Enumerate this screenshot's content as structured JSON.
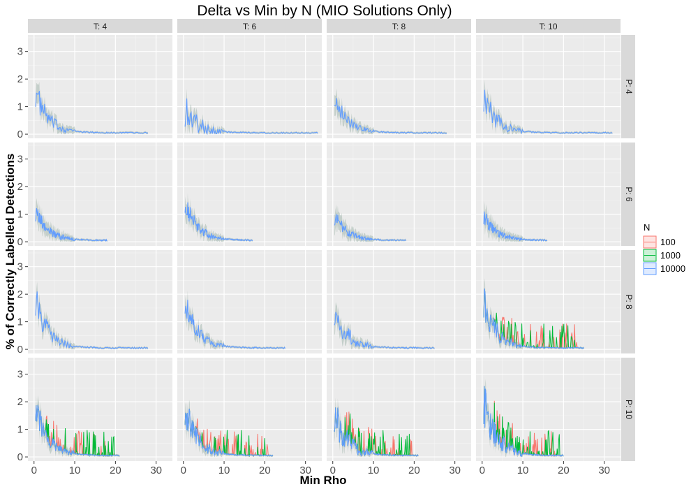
{
  "chart_data": {
    "type": "line",
    "title": "Delta vs Min by N (MIO Solutions Only)",
    "xlabel": "Min Rho",
    "ylabel": "% of Correctly Labelled Detections",
    "xlim": [
      -1.5,
      34
    ],
    "ylim": [
      -0.15,
      3.6
    ],
    "x_ticks": [
      0,
      10,
      20,
      30
    ],
    "y_ticks": [
      0,
      1,
      2,
      3
    ],
    "facet_cols": [
      "T: 4",
      "T: 6",
      "T: 8",
      "T: 10"
    ],
    "facet_rows": [
      "P: 4",
      "P: 6",
      "P: 8",
      "P: 10"
    ],
    "legend": {
      "title": "N",
      "position": "right",
      "entries": [
        {
          "label": "100",
          "color": "#F8766D"
        },
        {
          "label": "1000",
          "color": "#00BA38"
        },
        {
          "label": "10000",
          "color": "#619CFF"
        }
      ]
    },
    "series_colors": {
      "100": "#F8766D",
      "1000": "#00BA38",
      "10000": "#619CFF"
    },
    "panels": [
      {
        "row": "P: 4",
        "col": "T: 4",
        "x_max": 28,
        "start": 1.7,
        "noise": 0.75,
        "spikes": false
      },
      {
        "row": "P: 4",
        "col": "T: 6",
        "x_max": 33,
        "start": 1.0,
        "noise": 0.9,
        "spikes": false
      },
      {
        "row": "P: 4",
        "col": "T: 8",
        "x_max": 28,
        "start": 1.6,
        "noise": 0.55,
        "spikes": false
      },
      {
        "row": "P: 4",
        "col": "T: 10",
        "x_max": 32,
        "start": 1.5,
        "noise": 0.75,
        "spikes": false
      },
      {
        "row": "P: 6",
        "col": "T: 4",
        "x_max": 18,
        "start": 1.2,
        "noise": 0.5,
        "spikes": false
      },
      {
        "row": "P: 6",
        "col": "T: 6",
        "x_max": 17,
        "start": 1.6,
        "noise": 0.55,
        "spikes": false
      },
      {
        "row": "P: 6",
        "col": "T: 8",
        "x_max": 18,
        "start": 1.0,
        "noise": 0.45,
        "spikes": false
      },
      {
        "row": "P: 6",
        "col": "T: 10",
        "x_max": 16,
        "start": 1.0,
        "noise": 0.4,
        "spikes": false
      },
      {
        "row": "P: 8",
        "col": "T: 4",
        "x_max": 28,
        "start": 2.0,
        "noise": 0.8,
        "spikes": false
      },
      {
        "row": "P: 8",
        "col": "T: 6",
        "x_max": 25,
        "start": 2.0,
        "noise": 0.7,
        "spikes": false
      },
      {
        "row": "P: 8",
        "col": "T: 8",
        "x_max": 25,
        "start": 1.6,
        "noise": 0.8,
        "spikes": false
      },
      {
        "row": "P: 8",
        "col": "T: 10",
        "x_max": 25,
        "start": 2.0,
        "noise": 0.9,
        "spikes": true
      },
      {
        "row": "P: 10",
        "col": "T: 4",
        "x_max": 21,
        "start": 2.0,
        "noise": 0.7,
        "spikes": true
      },
      {
        "row": "P: 10",
        "col": "T: 6",
        "x_max": 22,
        "start": 2.0,
        "noise": 0.9,
        "spikes": true
      },
      {
        "row": "P: 10",
        "col": "T: 8",
        "x_max": 21,
        "start": 1.8,
        "noise": 1.0,
        "spikes": true
      },
      {
        "row": "P: 10",
        "col": "T: 10",
        "x_max": 20,
        "start": 2.2,
        "noise": 1.1,
        "spikes": true
      }
    ]
  }
}
